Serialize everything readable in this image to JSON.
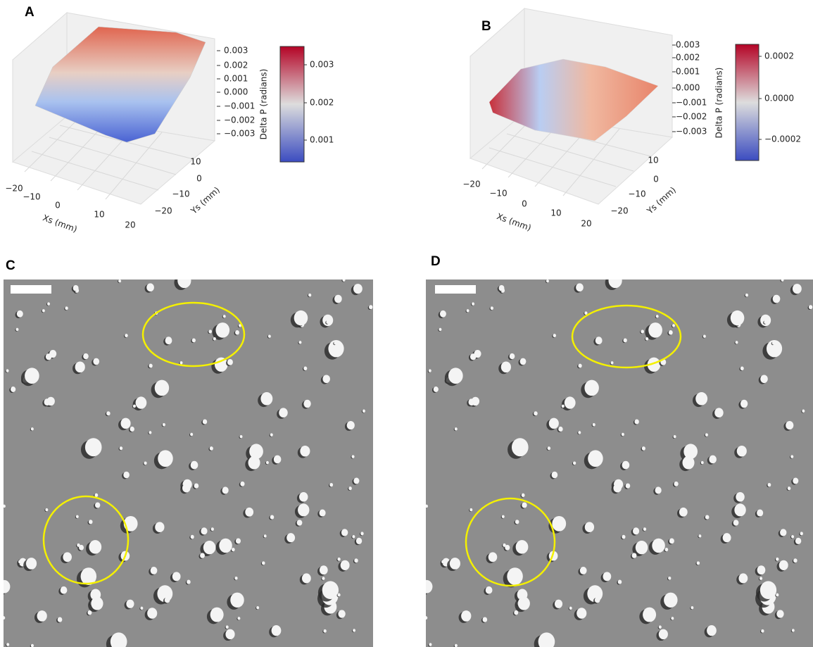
{
  "panels": [
    {
      "label": "A",
      "z_axis_label": "Delta P (radians)",
      "z_ticks": [
        "0.003",
        "0.002",
        "0.001",
        "0.000",
        "−0.001",
        "−0.002",
        "−0.003"
      ],
      "colorbar_ticks": [
        "0.003",
        "0.002",
        "0.001"
      ],
      "x_axis_label": "Xs (mm)",
      "x_ticks": [
        "−20",
        "−10",
        "0",
        "10",
        "20"
      ],
      "y_axis_label": "Ys (mm)",
      "y_ticks": [
        "10",
        "0",
        "−10",
        "−20"
      ]
    },
    {
      "label": "B",
      "z_axis_label": "Delta P (radians)",
      "z_ticks": [
        "0.003",
        "0.002",
        "0.001",
        "0.000",
        "−0.001",
        "−0.002",
        "−0.003"
      ],
      "colorbar_ticks": [
        "0.0002",
        "0.0000",
        "−0.0002"
      ],
      "x_axis_label": "Xs (mm)",
      "x_ticks": [
        "−20",
        "−10",
        "0",
        "10",
        "20"
      ],
      "y_axis_label": "Ys (mm)",
      "y_ticks": [
        "10",
        "0",
        "−10",
        "−20"
      ]
    },
    {
      "label": "C"
    },
    {
      "label": "D"
    }
  ]
}
